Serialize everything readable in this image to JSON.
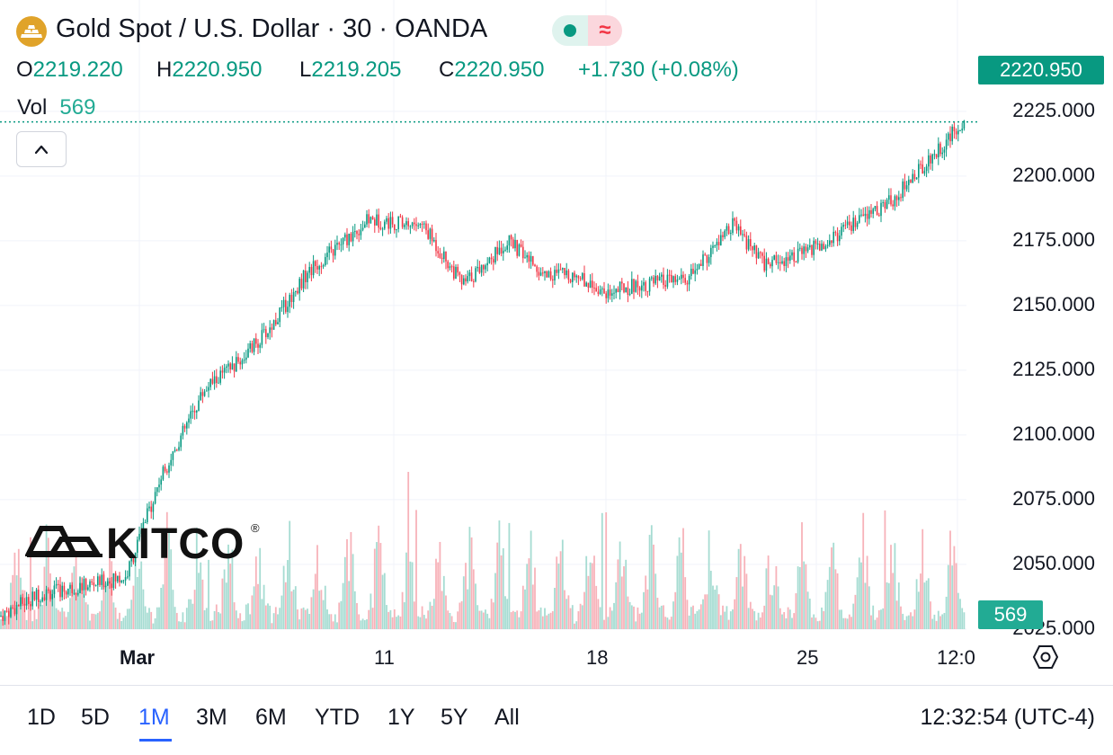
{
  "header": {
    "title": "Gold Spot / U.S. Dollar · 30 · OANDA",
    "symbol_icon": "gold-bars-icon",
    "status_icons": [
      "market-open-dot-icon",
      "delayed-data-icon"
    ],
    "status_wave": "≈",
    "open_label": "O",
    "open_value": "2219.220",
    "high_label": "H",
    "high_value": "2220.950",
    "low_label": "L",
    "low_value": "2219.205",
    "close_label": "C",
    "close_value": "2220.950",
    "change": "+1.730 (+0.08%)",
    "volume_label": "Vol",
    "volume_value": "569"
  },
  "price_tag": "2220.950",
  "volume_tag": "569",
  "watermark": {
    "text": "KITCO",
    "reg": "®"
  },
  "time_ranges": [
    "1D",
    "5D",
    "1M",
    "3M",
    "6M",
    "YTD",
    "1Y",
    "5Y",
    "All"
  ],
  "active_range": "1M",
  "clock": "12:32:54 (UTC-4)",
  "colors": {
    "up": "#089981",
    "down": "#f23645",
    "up_volume": "#a6dcd2",
    "down_volume": "#f7b2b9",
    "grid": "#f0f3fa"
  },
  "chart_data": {
    "type": "candlestick",
    "title": "Gold Spot / U.S. Dollar · 30 · OANDA",
    "interval": "30 minutes",
    "y_ticks": [
      "2025.000",
      "2050.000",
      "2075.000",
      "2100.000",
      "2125.000",
      "2150.000",
      "2175.000",
      "2200.000",
      "2225.000"
    ],
    "ylim": [
      2002,
      2226
    ],
    "x_ticks": [
      "Mar",
      "11",
      "18",
      "25",
      "12:0"
    ],
    "price_path": [
      {
        "d": "Feb 28",
        "p": 2038
      },
      {
        "d": "Mar 1",
        "p": 2045
      },
      {
        "d": "Mar 2",
        "p": 2083
      },
      {
        "d": "Mar 4",
        "p": 2118
      },
      {
        "d": "Mar 5",
        "p": 2128
      },
      {
        "d": "Mar 6",
        "p": 2141
      },
      {
        "d": "Mar 7",
        "p": 2162
      },
      {
        "d": "Mar 8",
        "p": 2183
      },
      {
        "d": "Mar 11",
        "p": 2181
      },
      {
        "d": "Mar 12",
        "p": 2158
      },
      {
        "d": "Mar 13",
        "p": 2175
      },
      {
        "d": "Mar 14",
        "p": 2162
      },
      {
        "d": "Mar 15",
        "p": 2162
      },
      {
        "d": "Mar 18",
        "p": 2155
      },
      {
        "d": "Mar 19",
        "p": 2158
      },
      {
        "d": "Mar 20",
        "p": 2160
      },
      {
        "d": "Mar 21",
        "p": 2181
      },
      {
        "d": "Mar 22",
        "p": 2166
      },
      {
        "d": "Mar 25",
        "p": 2171
      },
      {
        "d": "Mar 26",
        "p": 2178
      },
      {
        "d": "Mar 27",
        "p": 2190
      },
      {
        "d": "Mar 28",
        "p": 2220.95
      }
    ],
    "last": {
      "open": 2219.22,
      "high": 2220.95,
      "low": 2219.205,
      "close": 2220.95,
      "change": 1.73,
      "change_pct": 0.08,
      "volume": 569
    }
  }
}
